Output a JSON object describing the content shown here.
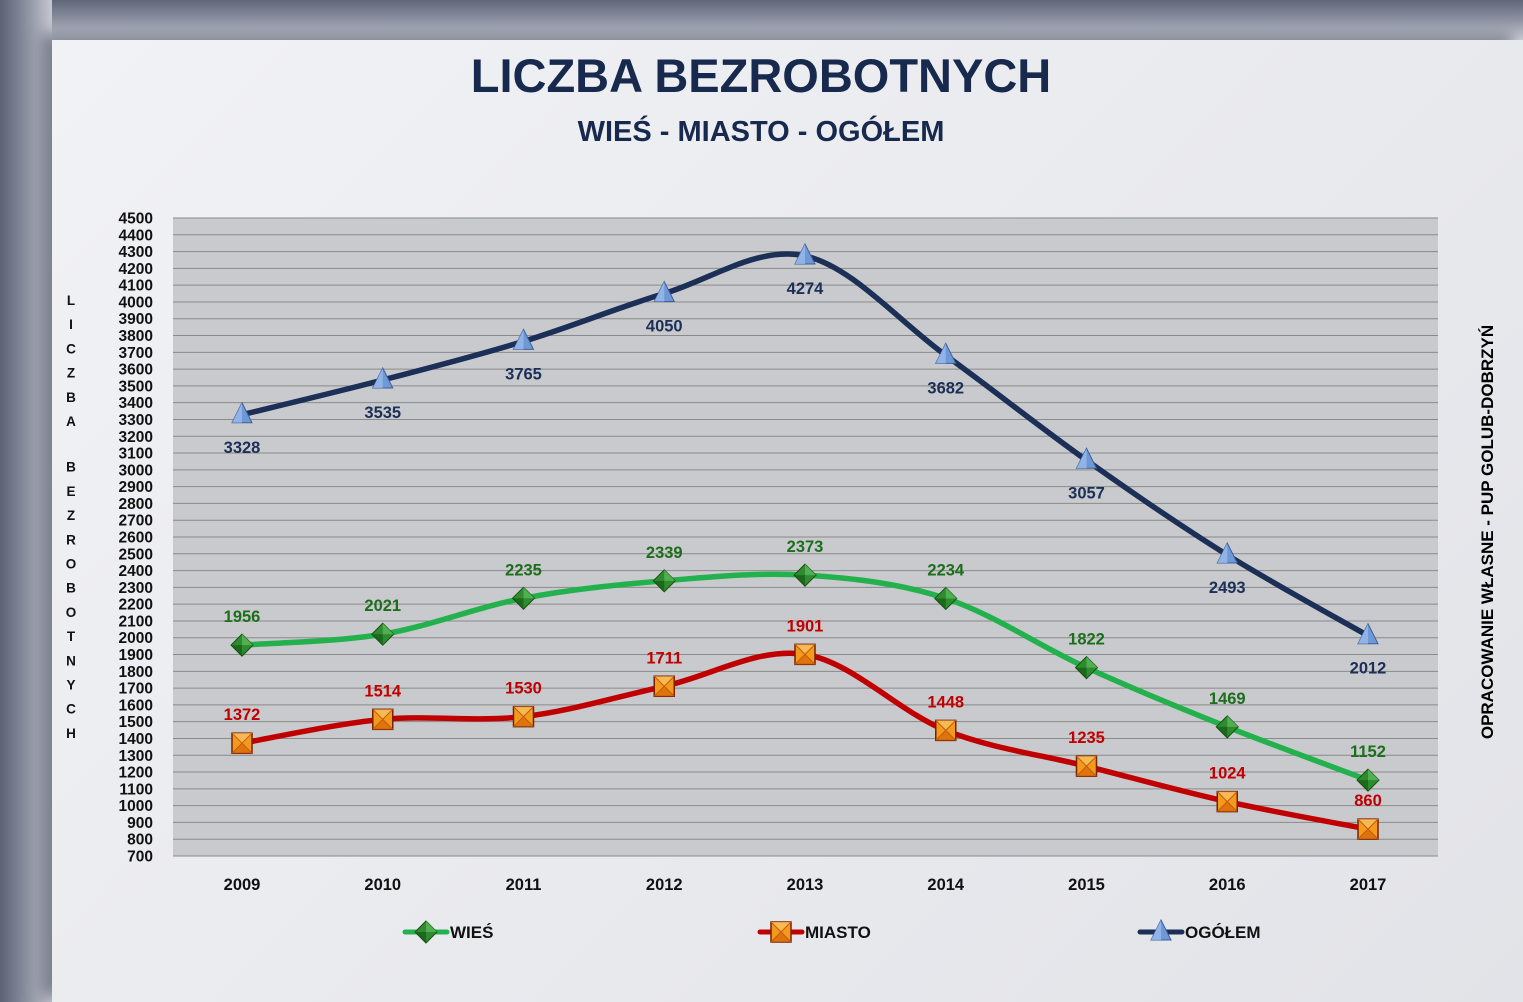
{
  "chart_data": {
    "type": "line",
    "title": "LICZBA BEZROBOTNYCH",
    "subtitle": "WIEŚ - MIASTO - OGÓŁEM",
    "ylabel": "LICZBA BEZROBOTNYCH",
    "side_note": "OPRACOWANIE WŁASNE - PUP GOLUB-DOBRZYŃ",
    "x": [
      "2009",
      "2010",
      "2011",
      "2012",
      "2013",
      "2014",
      "2015",
      "2016",
      "2017"
    ],
    "ylim": [
      700,
      4500
    ],
    "ystep": 100,
    "grid": true,
    "legend_position": "bottom",
    "series": [
      {
        "name": "WIEŚ",
        "values": [
          1956,
          2021,
          2235,
          2339,
          2373,
          2234,
          1822,
          1469,
          1152
        ],
        "line_color": "#22b14c",
        "marker": "diamond",
        "marker_color": "#1e7a1e",
        "label_color": "#1c6e1c",
        "label_position": "above"
      },
      {
        "name": "MIASTO",
        "values": [
          1372,
          1514,
          1530,
          1711,
          1901,
          1448,
          1235,
          1024,
          860
        ],
        "line_color": "#c00000",
        "marker": "square",
        "marker_color": "#f39a1c",
        "label_color": "#c00000",
        "label_position": "above"
      },
      {
        "name": "OGÓŁEM",
        "values": [
          3328,
          3535,
          3765,
          4050,
          4274,
          3682,
          3057,
          2493,
          2012
        ],
        "line_color": "#1b2f57",
        "marker": "triangle",
        "marker_color": "#6f99d6",
        "label_color": "#1b2f57",
        "label_position": "below"
      }
    ]
  }
}
